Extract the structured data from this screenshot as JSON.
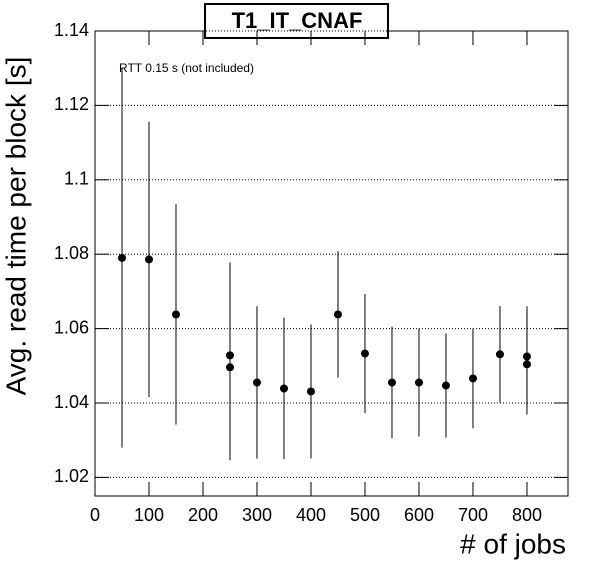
{
  "chart_data": {
    "type": "scatter",
    "title": "T1_IT_CNAF",
    "annotation": "RTT 0.15 s (not included)",
    "x_label": "# of jobs",
    "y_label": "Avg. read time per block [s]",
    "x": [
      50,
      100,
      150,
      250,
      250,
      300,
      350,
      400,
      450,
      500,
      550,
      600,
      650,
      700,
      750,
      800,
      800
    ],
    "series": [
      {
        "color": "#000000",
        "values": [
          1.079,
          1.0786,
          1.0638,
          1.0528,
          1.0496,
          1.0455,
          1.0439,
          1.0431,
          1.0638,
          1.0533,
          1.0455,
          1.0455,
          1.0447,
          1.0466,
          1.0531,
          1.0525,
          1.0504
        ],
        "errors": [
          0.051,
          0.037,
          0.0296,
          0.025,
          0.025,
          0.0205,
          0.019,
          0.018,
          0.017,
          0.016,
          0.015,
          0.0145,
          0.014,
          0.0134,
          0.013,
          0.0135,
          0.0135
        ]
      }
    ],
    "xlim": [
      0,
      876
    ],
    "ylim": [
      1.015,
      1.14
    ],
    "xticks": [
      0,
      100,
      200,
      300,
      400,
      500,
      600,
      700,
      800
    ],
    "yticks": [
      1.02,
      1.04,
      1.06,
      1.08,
      1.1,
      1.12,
      1.14
    ],
    "grid": true
  }
}
